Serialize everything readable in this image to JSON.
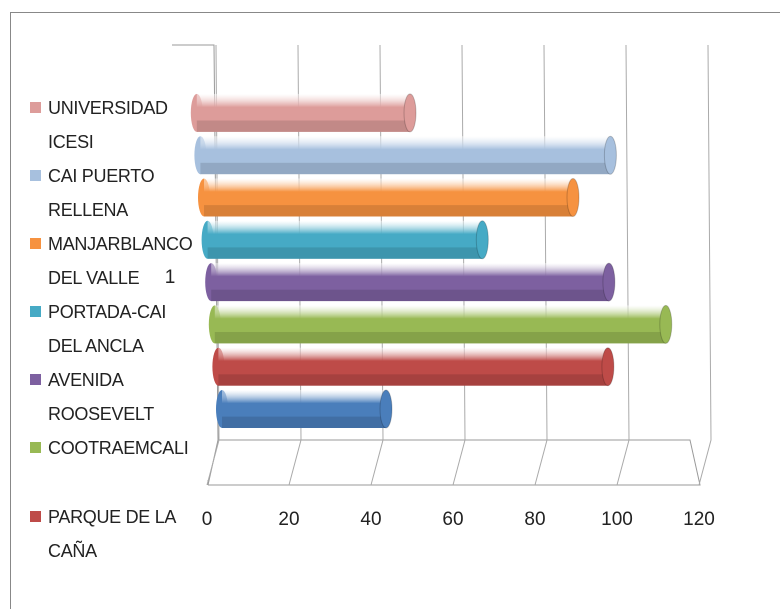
{
  "chart_data": {
    "type": "bar",
    "orientation": "horizontal",
    "categories": [
      "1"
    ],
    "series": [
      {
        "name": null,
        "color": "#4a7ebb",
        "values": [
          40
        ]
      },
      {
        "name": "PARQUE DE LA CAÑA",
        "color": "#be4b48",
        "values": [
          95
        ]
      },
      {
        "name": "COOTRAEMCALI",
        "color": "#98b954",
        "values": [
          110
        ]
      },
      {
        "name": "AVENIDA ROOSEVELT",
        "color": "#7d60a0",
        "values": [
          97
        ]
      },
      {
        "name": "PORTADA-CAI DEL ANCLA",
        "color": "#46aac5",
        "values": [
          67
        ]
      },
      {
        "name": "MANJARBLANCO DEL VALLE",
        "color": "#f69240",
        "values": [
          90
        ]
      },
      {
        "name": "CAI PUERTO RELLENA",
        "color": "#a7c0de",
        "values": [
          100
        ]
      },
      {
        "name": "UNIVERSIDAD ICESI",
        "color": "#dd9c9a",
        "values": [
          52
        ]
      }
    ],
    "xlim": [
      0,
      120
    ],
    "xticks": [
      0,
      20,
      40,
      60,
      80,
      100,
      120
    ],
    "grid": true,
    "legend": "left"
  }
}
